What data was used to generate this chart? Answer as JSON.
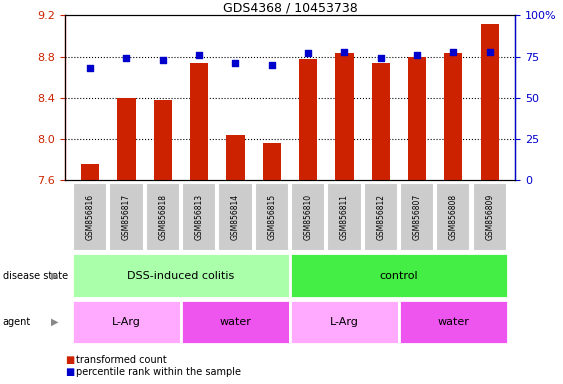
{
  "title": "GDS4368 / 10453738",
  "samples": [
    "GSM856816",
    "GSM856817",
    "GSM856818",
    "GSM856813",
    "GSM856814",
    "GSM856815",
    "GSM856810",
    "GSM856811",
    "GSM856812",
    "GSM856807",
    "GSM856808",
    "GSM856809"
  ],
  "red_values": [
    7.76,
    8.4,
    8.38,
    8.74,
    8.04,
    7.96,
    8.78,
    8.84,
    8.74,
    8.8,
    8.84,
    9.12
  ],
  "blue_values": [
    68,
    74,
    73,
    76,
    71,
    70,
    77,
    78,
    74,
    76,
    78,
    78
  ],
  "ylim_left": [
    7.6,
    9.2
  ],
  "ylim_right": [
    0,
    100
  ],
  "yticks_left": [
    7.6,
    8.0,
    8.4,
    8.8,
    9.2
  ],
  "yticks_right": [
    0,
    25,
    50,
    75,
    100
  ],
  "disease_state_groups": [
    {
      "label": "DSS-induced colitis",
      "start": 0,
      "end": 6,
      "color": "#AAFFAA"
    },
    {
      "label": "control",
      "start": 6,
      "end": 12,
      "color": "#44EE44"
    }
  ],
  "agent_groups": [
    {
      "label": "L-Arg",
      "start": 0,
      "end": 3,
      "color": "#FFAAFF"
    },
    {
      "label": "water",
      "start": 3,
      "end": 6,
      "color": "#EE55EE"
    },
    {
      "label": "L-Arg",
      "start": 6,
      "end": 9,
      "color": "#FFAAFF"
    },
    {
      "label": "water",
      "start": 9,
      "end": 12,
      "color": "#EE55EE"
    }
  ],
  "bar_color": "#CC2200",
  "dot_color": "#0000CC",
  "bar_width": 0.5,
  "ylabel_left_color": "#CC2200",
  "ylabel_right_color": "#0000CC",
  "grid_color": "#000000"
}
